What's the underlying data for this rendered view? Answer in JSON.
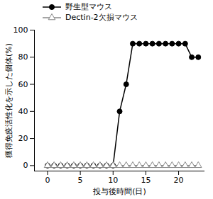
{
  "chart_data": {
    "type": "line",
    "x_label": "投与後時間(日)",
    "y_label": "獲得免疫活性化を示した個体(%)",
    "x": [
      0,
      1,
      2,
      3,
      4,
      5,
      6,
      7,
      8,
      9,
      10,
      11,
      12,
      13,
      14,
      15,
      16,
      17,
      18,
      19,
      20,
      21,
      22,
      23
    ],
    "series": [
      {
        "name": "野生型マウス",
        "color": "#000000",
        "marker": "circle",
        "line_style": "solid",
        "values": [
          0,
          0,
          0,
          0,
          0,
          0,
          0,
          0,
          0,
          0,
          0,
          40,
          60,
          90,
          90,
          90,
          90,
          90,
          90,
          90,
          90,
          90,
          80,
          80
        ]
      },
      {
        "name": "Dectin-2欠損マウス",
        "color": "#888888",
        "marker": "triangle-open",
        "line_style": "solid",
        "values": [
          0,
          0,
          0,
          0,
          0,
          0,
          0,
          0,
          0,
          0,
          0,
          0,
          0,
          0,
          0,
          0,
          0,
          0,
          0,
          0,
          0,
          0,
          0,
          0
        ]
      }
    ],
    "xlim": [
      -2,
      24
    ],
    "xticks": [
      0,
      5,
      10,
      15,
      20
    ],
    "ylim": [
      -4,
      100
    ],
    "yticks": [
      0,
      20,
      40,
      60,
      80,
      100
    ],
    "grid": false,
    "legend": "top-left"
  }
}
